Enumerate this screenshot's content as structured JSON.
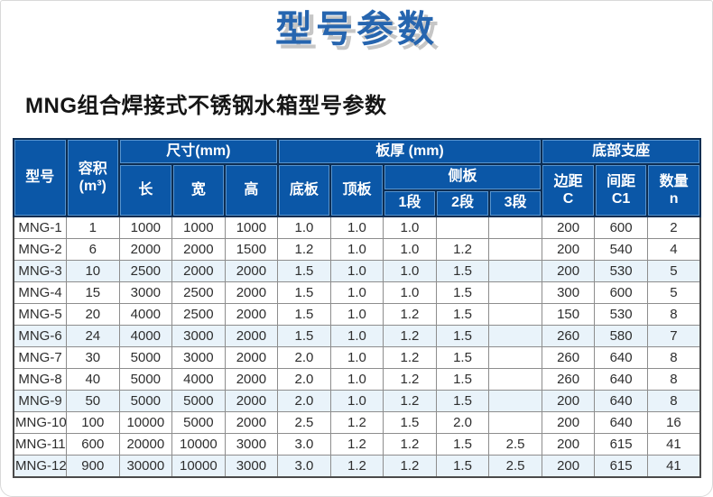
{
  "page": {
    "title": "型号参数",
    "subtitle": "MNG组合焊接式不锈钢水箱型号参数"
  },
  "colors": {
    "header_bg": "#0b57a7",
    "header_text": "#ffffff",
    "title_blue": "#2665af",
    "title_shadow": "#c6c6c6",
    "row_tint": "#e9f3fa",
    "border_dark_navy": "#0d2d52",
    "border_gray": "#8d8d8d"
  },
  "table": {
    "header": {
      "model": "型号",
      "volume_line1": "容积",
      "volume_line2": "(m³)",
      "size_group": "尺寸(mm)",
      "length": "长",
      "width": "宽",
      "height": "高",
      "thickness_group": "板厚 (mm)",
      "bottom_plate": "底板",
      "top_plate": "顶板",
      "side_plate_group": "侧板",
      "seg1": "1段",
      "seg2": "2段",
      "seg3": "3段",
      "support_group": "底部支座",
      "edge_line1": "边距",
      "edge_line2": "C",
      "spacing_line1": "间距",
      "spacing_line2": "C1",
      "qty_line1": "数量",
      "qty_line2": "n"
    },
    "rows": [
      [
        "MNG-1",
        "1",
        "1000",
        "1000",
        "1000",
        "1.0",
        "1.0",
        "1.0",
        "",
        "",
        "200",
        "600",
        "2"
      ],
      [
        "MNG-2",
        "6",
        "2000",
        "2000",
        "1500",
        "1.2",
        "1.0",
        "1.0",
        "1.2",
        "",
        "200",
        "540",
        "4"
      ],
      [
        "MNG-3",
        "10",
        "2500",
        "2000",
        "2000",
        "1.5",
        "1.0",
        "1.0",
        "1.5",
        "",
        "200",
        "530",
        "5"
      ],
      [
        "MNG-4",
        "15",
        "3000",
        "2500",
        "2000",
        "1.5",
        "1.0",
        "1.0",
        "1.5",
        "",
        "300",
        "600",
        "5"
      ],
      [
        "MNG-5",
        "20",
        "4000",
        "2500",
        "2000",
        "1.5",
        "1.0",
        "1.2",
        "1.5",
        "",
        "150",
        "530",
        "8"
      ],
      [
        "MNG-6",
        "24",
        "4000",
        "3000",
        "2000",
        "1.5",
        "1.0",
        "1.2",
        "1.5",
        "",
        "260",
        "580",
        "7"
      ],
      [
        "MNG-7",
        "30",
        "5000",
        "3000",
        "2000",
        "2.0",
        "1.0",
        "1.2",
        "1.5",
        "",
        "260",
        "640",
        "8"
      ],
      [
        "MNG-8",
        "40",
        "5000",
        "4000",
        "2000",
        "2.0",
        "1.0",
        "1.2",
        "1.5",
        "",
        "260",
        "640",
        "8"
      ],
      [
        "MNG-9",
        "50",
        "5000",
        "5000",
        "2000",
        "2.0",
        "1.0",
        "1.2",
        "1.5",
        "",
        "200",
        "640",
        "8"
      ],
      [
        "MNG-10",
        "100",
        "10000",
        "5000",
        "2000",
        "2.5",
        "1.2",
        "1.5",
        "2.0",
        "",
        "200",
        "640",
        "16"
      ],
      [
        "MNG-11",
        "600",
        "20000",
        "10000",
        "3000",
        "3.0",
        "1.2",
        "1.2",
        "1.5",
        "2.5",
        "200",
        "615",
        "41"
      ],
      [
        "MNG-12",
        "900",
        "30000",
        "10000",
        "3000",
        "3.0",
        "1.2",
        "1.2",
        "1.5",
        "2.5",
        "200",
        "615",
        "41"
      ]
    ],
    "highlighted_rows": [
      "MNG-3",
      "MNG-6",
      "MNG-9",
      "MNG-12"
    ]
  }
}
